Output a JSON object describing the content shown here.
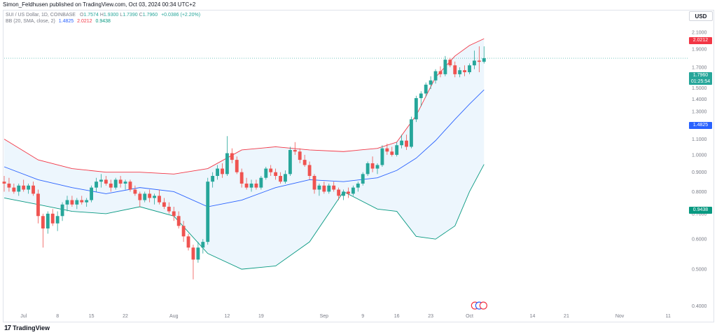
{
  "header": {
    "published": "Simon_Feldhusen published on TradingView.com, Oct 03, 2024 00:34 UTC+2"
  },
  "legend": {
    "symbol": "SUI / US Dollar, 1D, COINBASE",
    "ohlc": [
      {
        "k": "O",
        "v": "1.7574"
      },
      {
        "k": "H",
        "v": "1.9300"
      },
      {
        "k": "L",
        "v": "1.7390"
      },
      {
        "k": "C",
        "v": "1.7960"
      }
    ],
    "change": "+0.0386 (+2.20%)",
    "bb_label": "BB (20, SMA, close, 2)",
    "bb_basis": "1.4825",
    "bb_upper": "2.0212",
    "bb_lower": "0.9438"
  },
  "price_axis": {
    "currency": "USD",
    "current_price": "1.7960",
    "countdown": "01:25:54"
  },
  "colors": {
    "up": "#26a69a",
    "down": "#ef5350",
    "basis": "#2962ff",
    "upper": "#f23645",
    "lower": "#089981",
    "band_fill": "#e8f4fd"
  },
  "footer": {
    "brand": "TradingView",
    "logo": "tradingview-logo-icon"
  },
  "chart_data": {
    "type": "candlestick",
    "title": "SUI / US Dollar, 1D, COINBASE",
    "yscale": "log",
    "ylim": [
      0.37,
      2.25
    ],
    "y_ticks": [
      "2.1000",
      "1.9000",
      "1.7000",
      "1.6000",
      "1.5000",
      "1.4000",
      "1.3000",
      "1.2000",
      "1.1000",
      "1.0000",
      "0.9000",
      "0.8000",
      "0.7000",
      "0.6000",
      "0.5000",
      "0.4000"
    ],
    "x_ticks": [
      {
        "label": "Jul",
        "date": "2024-07-01"
      },
      {
        "label": "8",
        "date": "2024-07-08"
      },
      {
        "label": "15",
        "date": "2024-07-15"
      },
      {
        "label": "22",
        "date": "2024-07-22"
      },
      {
        "label": "Aug",
        "date": "2024-08-01"
      },
      {
        "label": "12",
        "date": "2024-08-12"
      },
      {
        "label": "19",
        "date": "2024-08-19"
      },
      {
        "label": "Sep",
        "date": "2024-09-01"
      },
      {
        "label": "9",
        "date": "2024-09-09"
      },
      {
        "label": "16",
        "date": "2024-09-16"
      },
      {
        "label": "23",
        "date": "2024-09-23"
      },
      {
        "label": "Oct",
        "date": "2024-10-01"
      },
      {
        "label": "14",
        "date": "2024-10-14"
      },
      {
        "label": "21",
        "date": "2024-10-21"
      },
      {
        "label": "Nov",
        "date": "2024-11-01"
      },
      {
        "label": "11",
        "date": "2024-11-11"
      }
    ],
    "x_range": [
      "2024-06-27",
      "2024-11-15"
    ],
    "candles": [
      {
        "d": "2024-06-27",
        "o": 0.85,
        "h": 0.88,
        "l": 0.8,
        "c": 0.84
      },
      {
        "d": "2024-06-28",
        "o": 0.84,
        "h": 0.87,
        "l": 0.8,
        "c": 0.82
      },
      {
        "d": "2024-06-29",
        "o": 0.82,
        "h": 0.84,
        "l": 0.79,
        "c": 0.8
      },
      {
        "d": "2024-06-30",
        "o": 0.8,
        "h": 0.84,
        "l": 0.78,
        "c": 0.83
      },
      {
        "d": "2024-07-01",
        "o": 0.83,
        "h": 0.86,
        "l": 0.8,
        "c": 0.81
      },
      {
        "d": "2024-07-02",
        "o": 0.81,
        "h": 0.84,
        "l": 0.79,
        "c": 0.83
      },
      {
        "d": "2024-07-03",
        "o": 0.83,
        "h": 0.85,
        "l": 0.78,
        "c": 0.79
      },
      {
        "d": "2024-07-04",
        "o": 0.79,
        "h": 0.81,
        "l": 0.66,
        "c": 0.69
      },
      {
        "d": "2024-07-05",
        "o": 0.69,
        "h": 0.7,
        "l": 0.57,
        "c": 0.64
      },
      {
        "d": "2024-07-06",
        "o": 0.64,
        "h": 0.71,
        "l": 0.62,
        "c": 0.7
      },
      {
        "d": "2024-07-07",
        "o": 0.7,
        "h": 0.72,
        "l": 0.65,
        "c": 0.66
      },
      {
        "d": "2024-07-08",
        "o": 0.66,
        "h": 0.71,
        "l": 0.63,
        "c": 0.69
      },
      {
        "d": "2024-07-09",
        "o": 0.69,
        "h": 0.75,
        "l": 0.67,
        "c": 0.74
      },
      {
        "d": "2024-07-10",
        "o": 0.74,
        "h": 0.78,
        "l": 0.71,
        "c": 0.76
      },
      {
        "d": "2024-07-11",
        "o": 0.76,
        "h": 0.78,
        "l": 0.73,
        "c": 0.74
      },
      {
        "d": "2024-07-12",
        "o": 0.74,
        "h": 0.77,
        "l": 0.72,
        "c": 0.76
      },
      {
        "d": "2024-07-13",
        "o": 0.76,
        "h": 0.78,
        "l": 0.74,
        "c": 0.75
      },
      {
        "d": "2024-07-14",
        "o": 0.75,
        "h": 0.77,
        "l": 0.73,
        "c": 0.76
      },
      {
        "d": "2024-07-15",
        "o": 0.76,
        "h": 0.83,
        "l": 0.75,
        "c": 0.82
      },
      {
        "d": "2024-07-16",
        "o": 0.82,
        "h": 0.87,
        "l": 0.8,
        "c": 0.85
      },
      {
        "d": "2024-07-17",
        "o": 0.85,
        "h": 0.89,
        "l": 0.82,
        "c": 0.86
      },
      {
        "d": "2024-07-18",
        "o": 0.86,
        "h": 0.88,
        "l": 0.83,
        "c": 0.84
      },
      {
        "d": "2024-07-19",
        "o": 0.84,
        "h": 0.86,
        "l": 0.8,
        "c": 0.82
      },
      {
        "d": "2024-07-20",
        "o": 0.82,
        "h": 0.87,
        "l": 0.81,
        "c": 0.86
      },
      {
        "d": "2024-07-21",
        "o": 0.86,
        "h": 0.88,
        "l": 0.82,
        "c": 0.84
      },
      {
        "d": "2024-07-22",
        "o": 0.84,
        "h": 0.86,
        "l": 0.81,
        "c": 0.85
      },
      {
        "d": "2024-07-23",
        "o": 0.85,
        "h": 0.86,
        "l": 0.8,
        "c": 0.81
      },
      {
        "d": "2024-07-24",
        "o": 0.81,
        "h": 0.83,
        "l": 0.78,
        "c": 0.79
      },
      {
        "d": "2024-07-25",
        "o": 0.79,
        "h": 0.8,
        "l": 0.73,
        "c": 0.76
      },
      {
        "d": "2024-07-26",
        "o": 0.76,
        "h": 0.8,
        "l": 0.75,
        "c": 0.79
      },
      {
        "d": "2024-07-27",
        "o": 0.79,
        "h": 0.81,
        "l": 0.75,
        "c": 0.77
      },
      {
        "d": "2024-07-28",
        "o": 0.77,
        "h": 0.79,
        "l": 0.74,
        "c": 0.78
      },
      {
        "d": "2024-07-29",
        "o": 0.78,
        "h": 0.81,
        "l": 0.74,
        "c": 0.75
      },
      {
        "d": "2024-07-30",
        "o": 0.75,
        "h": 0.77,
        "l": 0.72,
        "c": 0.73
      },
      {
        "d": "2024-07-31",
        "o": 0.73,
        "h": 0.75,
        "l": 0.7,
        "c": 0.71
      },
      {
        "d": "2024-08-01",
        "o": 0.71,
        "h": 0.73,
        "l": 0.67,
        "c": 0.69
      },
      {
        "d": "2024-08-02",
        "o": 0.69,
        "h": 0.71,
        "l": 0.64,
        "c": 0.65
      },
      {
        "d": "2024-08-03",
        "o": 0.65,
        "h": 0.67,
        "l": 0.59,
        "c": 0.61
      },
      {
        "d": "2024-08-04",
        "o": 0.61,
        "h": 0.62,
        "l": 0.56,
        "c": 0.57
      },
      {
        "d": "2024-08-05",
        "o": 0.57,
        "h": 0.58,
        "l": 0.47,
        "c": 0.53
      },
      {
        "d": "2024-08-06",
        "o": 0.53,
        "h": 0.59,
        "l": 0.52,
        "c": 0.57
      },
      {
        "d": "2024-08-07",
        "o": 0.57,
        "h": 0.6,
        "l": 0.55,
        "c": 0.59
      },
      {
        "d": "2024-08-08",
        "o": 0.59,
        "h": 0.87,
        "l": 0.58,
        "c": 0.85
      },
      {
        "d": "2024-08-09",
        "o": 0.85,
        "h": 0.9,
        "l": 0.82,
        "c": 0.88
      },
      {
        "d": "2024-08-10",
        "o": 0.88,
        "h": 0.94,
        "l": 0.86,
        "c": 0.92
      },
      {
        "d": "2024-08-11",
        "o": 0.92,
        "h": 0.95,
        "l": 0.87,
        "c": 0.89
      },
      {
        "d": "2024-08-12",
        "o": 0.89,
        "h": 1.12,
        "l": 0.88,
        "c": 1.01
      },
      {
        "d": "2024-08-13",
        "o": 1.01,
        "h": 1.04,
        "l": 0.95,
        "c": 0.97
      },
      {
        "d": "2024-08-14",
        "o": 0.97,
        "h": 0.99,
        "l": 0.89,
        "c": 0.9
      },
      {
        "d": "2024-08-15",
        "o": 0.9,
        "h": 0.92,
        "l": 0.82,
        "c": 0.84
      },
      {
        "d": "2024-08-16",
        "o": 0.84,
        "h": 0.87,
        "l": 0.81,
        "c": 0.82
      },
      {
        "d": "2024-08-17",
        "o": 0.82,
        "h": 0.86,
        "l": 0.8,
        "c": 0.84
      },
      {
        "d": "2024-08-18",
        "o": 0.84,
        "h": 0.86,
        "l": 0.81,
        "c": 0.82
      },
      {
        "d": "2024-08-19",
        "o": 0.82,
        "h": 0.88,
        "l": 0.81,
        "c": 0.87
      },
      {
        "d": "2024-08-20",
        "o": 0.87,
        "h": 0.93,
        "l": 0.86,
        "c": 0.92
      },
      {
        "d": "2024-08-21",
        "o": 0.92,
        "h": 0.94,
        "l": 0.88,
        "c": 0.9
      },
      {
        "d": "2024-08-22",
        "o": 0.9,
        "h": 0.92,
        "l": 0.86,
        "c": 0.88
      },
      {
        "d": "2024-08-23",
        "o": 0.88,
        "h": 0.9,
        "l": 0.84,
        "c": 0.85
      },
      {
        "d": "2024-08-24",
        "o": 0.85,
        "h": 0.91,
        "l": 0.84,
        "c": 0.89
      },
      {
        "d": "2024-08-25",
        "o": 0.89,
        "h": 1.05,
        "l": 0.88,
        "c": 1.03
      },
      {
        "d": "2024-08-26",
        "o": 1.03,
        "h": 1.08,
        "l": 1.0,
        "c": 1.02
      },
      {
        "d": "2024-08-27",
        "o": 1.02,
        "h": 1.04,
        "l": 0.95,
        "c": 0.97
      },
      {
        "d": "2024-08-28",
        "o": 0.97,
        "h": 1.0,
        "l": 0.93,
        "c": 0.94
      },
      {
        "d": "2024-08-29",
        "o": 0.94,
        "h": 0.96,
        "l": 0.86,
        "c": 0.88
      },
      {
        "d": "2024-08-30",
        "o": 0.88,
        "h": 0.89,
        "l": 0.79,
        "c": 0.81
      },
      {
        "d": "2024-08-31",
        "o": 0.81,
        "h": 0.84,
        "l": 0.78,
        "c": 0.83
      },
      {
        "d": "2024-09-01",
        "o": 0.83,
        "h": 0.85,
        "l": 0.79,
        "c": 0.8
      },
      {
        "d": "2024-09-02",
        "o": 0.8,
        "h": 0.84,
        "l": 0.79,
        "c": 0.83
      },
      {
        "d": "2024-09-03",
        "o": 0.83,
        "h": 0.85,
        "l": 0.8,
        "c": 0.81
      },
      {
        "d": "2024-09-04",
        "o": 0.81,
        "h": 0.82,
        "l": 0.76,
        "c": 0.78
      },
      {
        "d": "2024-09-05",
        "o": 0.78,
        "h": 0.81,
        "l": 0.76,
        "c": 0.8
      },
      {
        "d": "2024-09-06",
        "o": 0.8,
        "h": 0.82,
        "l": 0.77,
        "c": 0.79
      },
      {
        "d": "2024-09-07",
        "o": 0.79,
        "h": 0.83,
        "l": 0.78,
        "c": 0.82
      },
      {
        "d": "2024-09-08",
        "o": 0.82,
        "h": 0.85,
        "l": 0.8,
        "c": 0.84
      },
      {
        "d": "2024-09-09",
        "o": 0.84,
        "h": 0.9,
        "l": 0.83,
        "c": 0.89
      },
      {
        "d": "2024-09-10",
        "o": 0.89,
        "h": 0.96,
        "l": 0.88,
        "c": 0.95
      },
      {
        "d": "2024-09-11",
        "o": 0.95,
        "h": 0.99,
        "l": 0.9,
        "c": 0.92
      },
      {
        "d": "2024-09-12",
        "o": 0.92,
        "h": 0.95,
        "l": 0.89,
        "c": 0.94
      },
      {
        "d": "2024-09-13",
        "o": 0.94,
        "h": 1.06,
        "l": 0.93,
        "c": 1.04
      },
      {
        "d": "2024-09-14",
        "o": 1.04,
        "h": 1.07,
        "l": 1.0,
        "c": 1.02
      },
      {
        "d": "2024-09-15",
        "o": 1.02,
        "h": 1.05,
        "l": 0.99,
        "c": 1.0
      },
      {
        "d": "2024-09-16",
        "o": 1.0,
        "h": 1.08,
        "l": 0.99,
        "c": 1.06
      },
      {
        "d": "2024-09-17",
        "o": 1.06,
        "h": 1.13,
        "l": 1.04,
        "c": 1.09
      },
      {
        "d": "2024-09-18",
        "o": 1.09,
        "h": 1.13,
        "l": 1.03,
        "c": 1.05
      },
      {
        "d": "2024-09-19",
        "o": 1.05,
        "h": 1.26,
        "l": 1.04,
        "c": 1.24
      },
      {
        "d": "2024-09-20",
        "o": 1.24,
        "h": 1.43,
        "l": 1.22,
        "c": 1.41
      },
      {
        "d": "2024-09-21",
        "o": 1.41,
        "h": 1.47,
        "l": 1.34,
        "c": 1.45
      },
      {
        "d": "2024-09-22",
        "o": 1.45,
        "h": 1.55,
        "l": 1.42,
        "c": 1.53
      },
      {
        "d": "2024-09-23",
        "o": 1.53,
        "h": 1.61,
        "l": 1.49,
        "c": 1.57
      },
      {
        "d": "2024-09-24",
        "o": 1.57,
        "h": 1.68,
        "l": 1.54,
        "c": 1.66
      },
      {
        "d": "2024-09-25",
        "o": 1.66,
        "h": 1.71,
        "l": 1.6,
        "c": 1.63
      },
      {
        "d": "2024-09-26",
        "o": 1.63,
        "h": 1.82,
        "l": 1.61,
        "c": 1.78
      },
      {
        "d": "2024-09-27",
        "o": 1.78,
        "h": 1.8,
        "l": 1.7,
        "c": 1.72
      },
      {
        "d": "2024-09-28",
        "o": 1.72,
        "h": 1.76,
        "l": 1.6,
        "c": 1.63
      },
      {
        "d": "2024-09-29",
        "o": 1.63,
        "h": 1.7,
        "l": 1.6,
        "c": 1.67
      },
      {
        "d": "2024-09-30",
        "o": 1.67,
        "h": 1.72,
        "l": 1.61,
        "c": 1.65
      },
      {
        "d": "2024-10-01",
        "o": 1.65,
        "h": 1.74,
        "l": 1.63,
        "c": 1.72
      },
      {
        "d": "2024-10-02",
        "o": 1.72,
        "h": 1.88,
        "l": 1.68,
        "c": 1.77
      },
      {
        "d": "2024-10-03",
        "o": 1.77,
        "h": 1.93,
        "l": 1.65,
        "c": 1.7574
      },
      {
        "d": "2024-10-04",
        "o": 1.7574,
        "h": 1.93,
        "l": 1.739,
        "c": 1.796
      }
    ],
    "bollinger": {
      "period": 20,
      "stddev": 2,
      "basis": [
        [
          "2024-06-27",
          0.93
        ],
        [
          "2024-07-04",
          0.86
        ],
        [
          "2024-07-11",
          0.82
        ],
        [
          "2024-07-18",
          0.79
        ],
        [
          "2024-07-25",
          0.82
        ],
        [
          "2024-08-01",
          0.8
        ],
        [
          "2024-08-08",
          0.73
        ],
        [
          "2024-08-15",
          0.76
        ],
        [
          "2024-08-22",
          0.82
        ],
        [
          "2024-08-29",
          0.86
        ],
        [
          "2024-09-05",
          0.85
        ],
        [
          "2024-09-12",
          0.87
        ],
        [
          "2024-09-16",
          0.91
        ],
        [
          "2024-09-20",
          0.98
        ],
        [
          "2024-09-24",
          1.09
        ],
        [
          "2024-09-28",
          1.24
        ],
        [
          "2024-10-01",
          1.36
        ],
        [
          "2024-10-04",
          1.4825
        ]
      ],
      "upper": [
        [
          "2024-06-27",
          1.1
        ],
        [
          "2024-07-04",
          0.97
        ],
        [
          "2024-07-11",
          0.92
        ],
        [
          "2024-07-18",
          0.9
        ],
        [
          "2024-07-25",
          0.9
        ],
        [
          "2024-08-01",
          0.89
        ],
        [
          "2024-08-08",
          0.92
        ],
        [
          "2024-08-15",
          1.03
        ],
        [
          "2024-08-22",
          1.05
        ],
        [
          "2024-08-29",
          1.03
        ],
        [
          "2024-09-05",
          1.02
        ],
        [
          "2024-09-12",
          1.04
        ],
        [
          "2024-09-16",
          1.08
        ],
        [
          "2024-09-20",
          1.27
        ],
        [
          "2024-09-24",
          1.6
        ],
        [
          "2024-09-28",
          1.82
        ],
        [
          "2024-10-01",
          1.94
        ],
        [
          "2024-10-04",
          2.0212
        ]
      ],
      "lower": [
        [
          "2024-06-27",
          0.77
        ],
        [
          "2024-07-04",
          0.74
        ],
        [
          "2024-07-11",
          0.71
        ],
        [
          "2024-07-18",
          0.7
        ],
        [
          "2024-07-25",
          0.73
        ],
        [
          "2024-08-01",
          0.69
        ],
        [
          "2024-08-08",
          0.55
        ],
        [
          "2024-08-15",
          0.5
        ],
        [
          "2024-08-22",
          0.51
        ],
        [
          "2024-08-29",
          0.59
        ],
        [
          "2024-09-05",
          0.8
        ],
        [
          "2024-09-12",
          0.72
        ],
        [
          "2024-09-16",
          0.71
        ],
        [
          "2024-09-20",
          0.61
        ],
        [
          "2024-09-24",
          0.6
        ],
        [
          "2024-09-28",
          0.65
        ],
        [
          "2024-10-01",
          0.8
        ],
        [
          "2024-10-04",
          0.9438
        ]
      ]
    },
    "grid": false,
    "legend_position": "top-left"
  }
}
